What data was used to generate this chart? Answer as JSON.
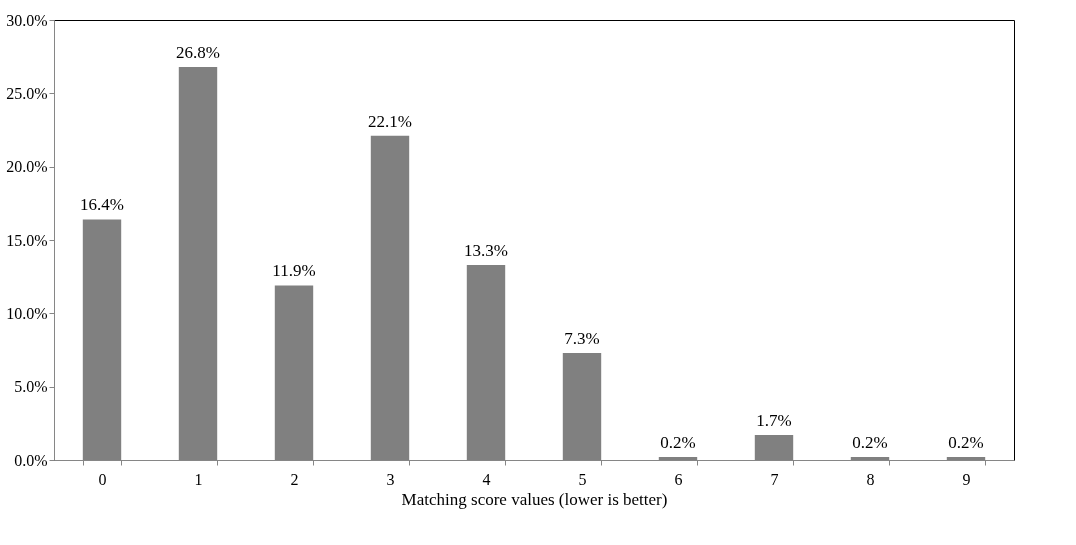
{
  "chart_data": {
    "type": "bar",
    "xlabel": "Matching score values (lower is better)",
    "categories": [
      "0",
      "1",
      "2",
      "3",
      "4",
      "5",
      "6",
      "7",
      "8",
      "9"
    ],
    "series": [
      {
        "color": "#808080",
        "values": [
          16.4,
          26.8,
          11.9,
          22.1,
          13.3,
          7.3,
          0.2,
          1.7,
          0.2,
          0.2
        ],
        "value_labels": [
          "16.4%",
          "26.8%",
          "11.9%",
          "22.1%",
          "13.3%",
          "7.3%",
          "0.2%",
          "1.7%",
          "0.2%",
          "0.2%"
        ]
      }
    ],
    "ylim": [
      0,
      30
    ],
    "yticks": [
      {
        "value": 0,
        "label": "0.0%"
      },
      {
        "value": 5,
        "label": "5.0%"
      },
      {
        "value": 10,
        "label": "10.0%"
      },
      {
        "value": 15,
        "label": "15.0%"
      },
      {
        "value": 20,
        "label": "20.0%"
      },
      {
        "value": 25,
        "label": "25.0%"
      },
      {
        "value": 30,
        "label": "30.0%"
      }
    ],
    "grid": false
  }
}
